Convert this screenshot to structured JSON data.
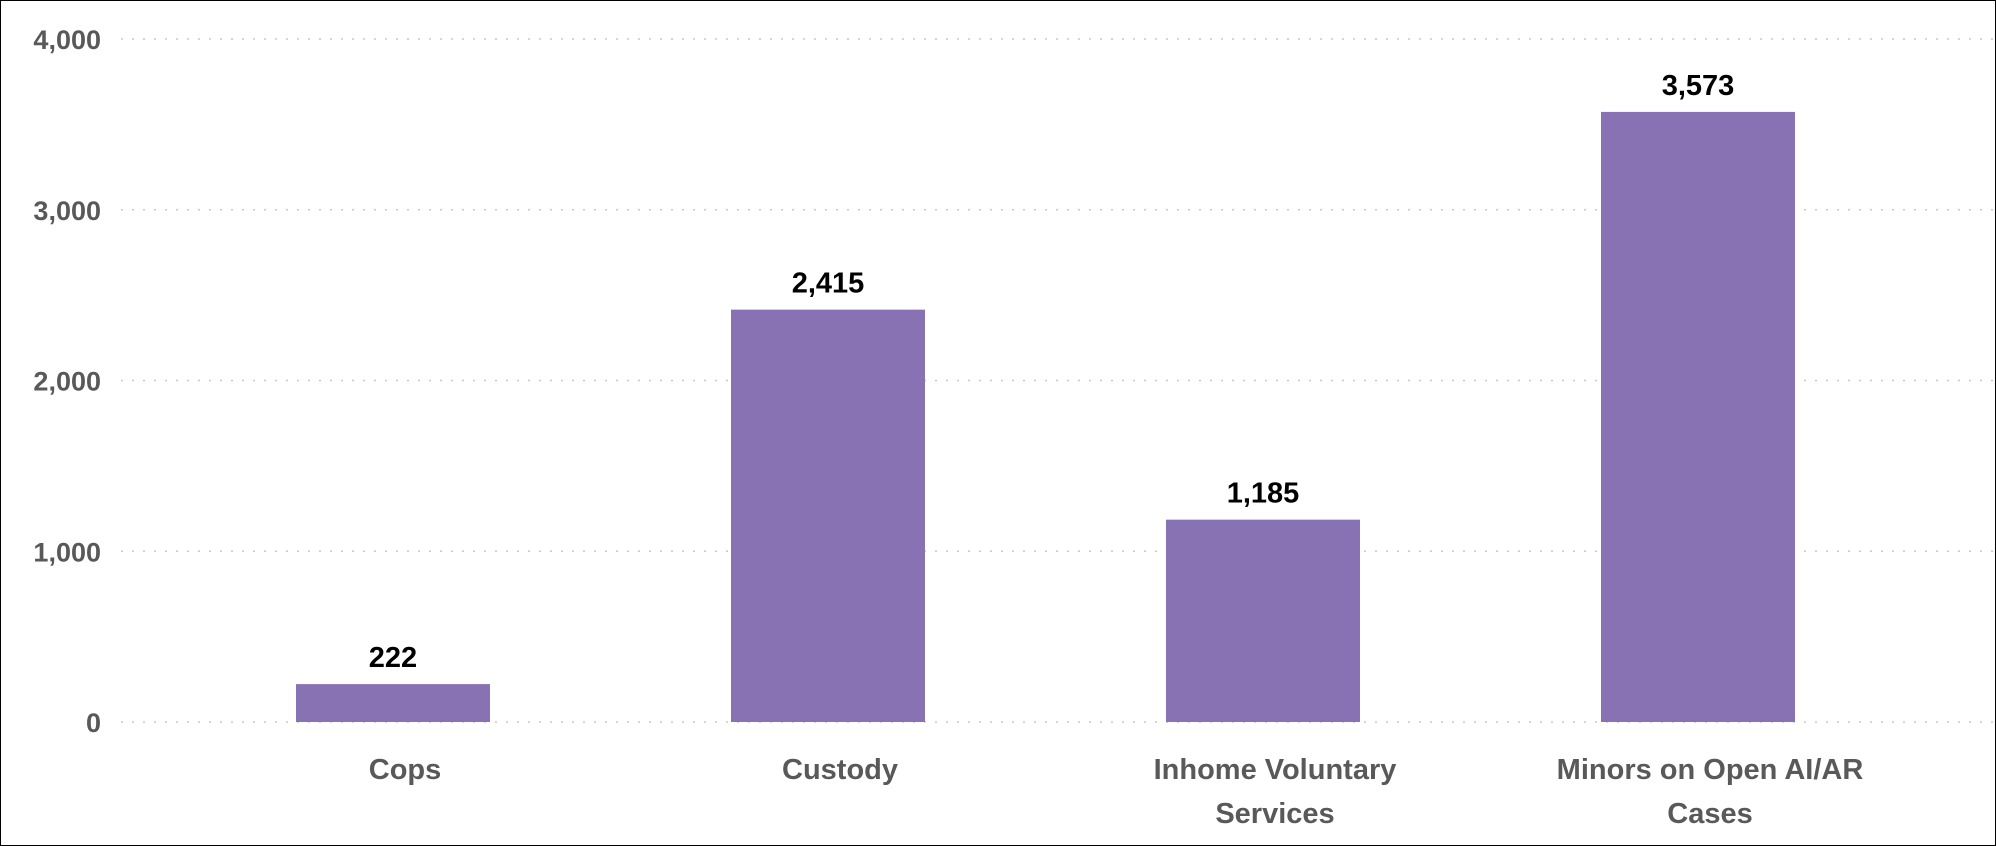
{
  "chart_data": {
    "type": "bar",
    "title": "",
    "xlabel": "",
    "ylabel": "",
    "categories": [
      "Cops",
      "Custody",
      "Inhome Voluntary Services",
      "Minors on Open AI/AR Cases"
    ],
    "category_lines": [
      [
        "Cops"
      ],
      [
        "Custody"
      ],
      [
        "Inhome Voluntary",
        "Services"
      ],
      [
        "Minors on Open AI/AR",
        "Cases"
      ]
    ],
    "values": [
      222,
      2415,
      1185,
      3573
    ],
    "value_labels": [
      "222",
      "2,415",
      "1,185",
      "3,573"
    ],
    "ylim": [
      0,
      4000
    ],
    "yticks": [
      0,
      1000,
      2000,
      3000,
      4000
    ],
    "ytick_labels": [
      "0",
      "1,000",
      "2,000",
      "3,000",
      "4,000"
    ],
    "grid": "horizontal-dotted",
    "legend": "none",
    "colors": {
      "bar": "#8872b4",
      "tick_text": "#595959",
      "data_label": "#000000",
      "grid": "#c8c8c8"
    }
  }
}
